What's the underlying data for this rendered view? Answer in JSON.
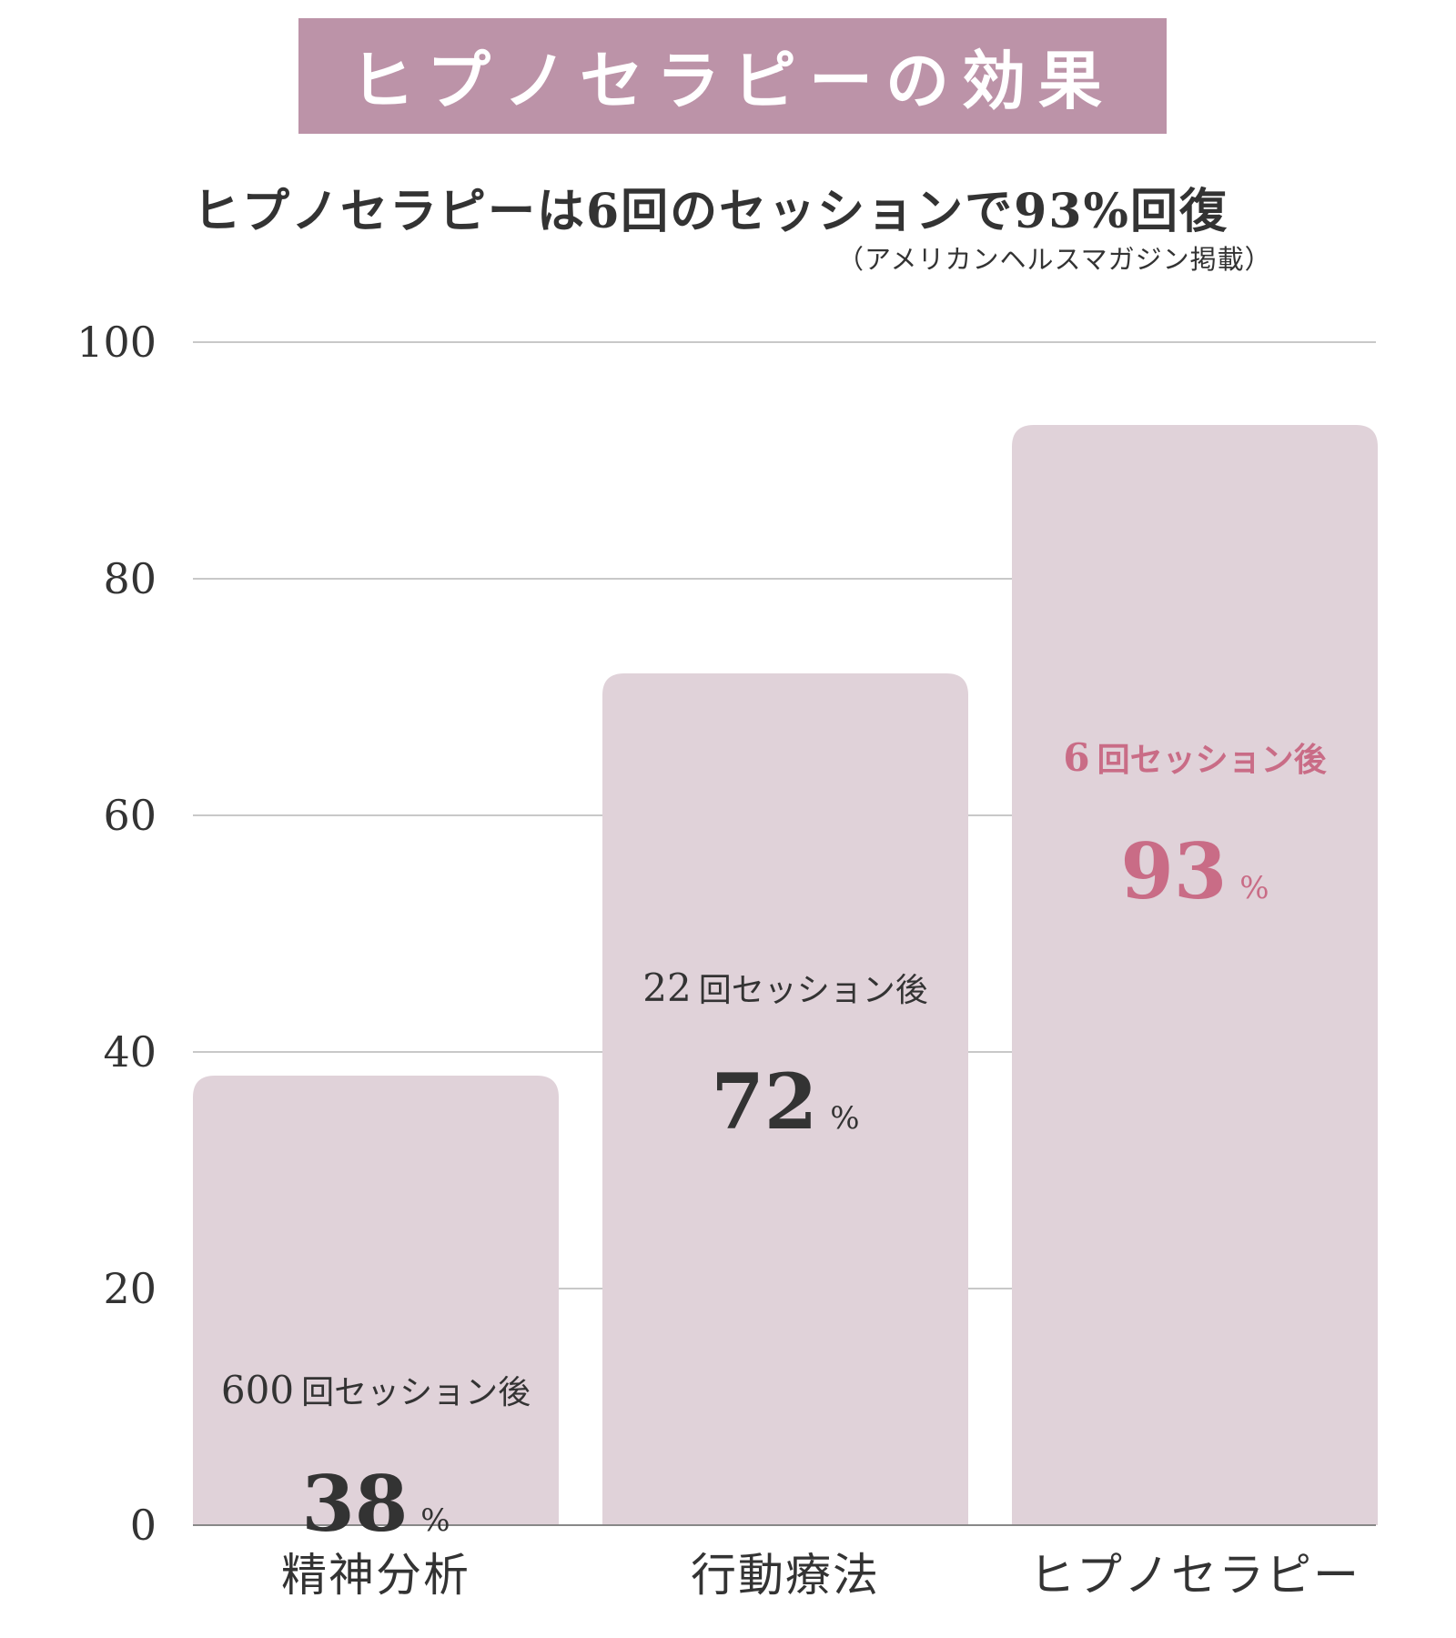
{
  "banner": {
    "title": "ヒプノセラピーの効果"
  },
  "subtitle": "ヒプノセラピーは6回のセッションで93%回復",
  "source_note": "（アメリカンヘルスマガジン掲載）",
  "colors": {
    "banner": "#bc93a8",
    "bar": "#e0d2d9",
    "highlight": "#c96c86",
    "text": "#333333",
    "grid": "#c8c8c8"
  },
  "chart_data": {
    "type": "bar",
    "title": "",
    "xlabel": "",
    "ylabel": "",
    "ylim": [
      0,
      100
    ],
    "yticks": [
      0,
      20,
      40,
      60,
      80,
      100
    ],
    "grid": true,
    "categories": [
      "精神分析",
      "行動療法",
      "ヒプノセラピー"
    ],
    "values": [
      38,
      72,
      93
    ],
    "annotations": [
      {
        "sessions": "600",
        "label": "回セッション後",
        "value_text": "38",
        "unit": "%"
      },
      {
        "sessions": "22",
        "label": "回セッション後",
        "value_text": "72",
        "unit": "%"
      },
      {
        "sessions": "6",
        "label": "回セッション後",
        "value_text": "93",
        "unit": "%"
      }
    ],
    "highlight_index": 2
  }
}
